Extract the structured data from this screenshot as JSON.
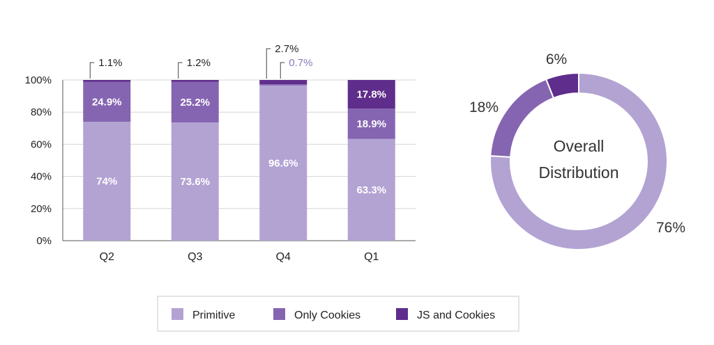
{
  "colors": {
    "Primitive": "#b3a3d3",
    "Only Cookies": "#8565b1",
    "JS and Cookies": "#5f2d8b"
  },
  "chart_data": [
    {
      "type": "bar",
      "stacked": true,
      "title": "",
      "xlabel": "",
      "ylabel": "",
      "ylim": [
        0,
        100
      ],
      "yticks": [
        "0%",
        "20%",
        "40%",
        "60%",
        "80%",
        "100%"
      ],
      "grid": true,
      "categories": [
        "Q2",
        "Q3",
        "Q4",
        "Q1"
      ],
      "series": [
        {
          "name": "Primitive",
          "values": [
            74,
            73.6,
            96.6,
            63.3
          ],
          "labels": [
            "74%",
            "73.6%",
            "96.6%",
            "63.3%"
          ]
        },
        {
          "name": "Only Cookies",
          "values": [
            24.9,
            25.2,
            0.7,
            18.9
          ],
          "labels": [
            "24.9%",
            "25.2%",
            "0.7%",
            "18.9%"
          ]
        },
        {
          "name": "JS and Cookies",
          "values": [
            1.1,
            1.2,
            2.7,
            17.8
          ],
          "labels": [
            "1.1%",
            "1.2%",
            "2.7%",
            "17.8%"
          ]
        }
      ],
      "legend": "bottom"
    },
    {
      "type": "pie",
      "donut": true,
      "center_label": [
        "Overall",
        "Distribution"
      ],
      "slices": [
        {
          "name": "Primitive",
          "value": 76,
          "label": "76%"
        },
        {
          "name": "Only Cookies",
          "value": 18,
          "label": "18%"
        },
        {
          "name": "JS and Cookies",
          "value": 6,
          "label": "6%"
        }
      ]
    }
  ],
  "legend": {
    "items": [
      {
        "name": "Primitive"
      },
      {
        "name": "Only Cookies"
      },
      {
        "name": "JS and Cookies"
      }
    ]
  }
}
